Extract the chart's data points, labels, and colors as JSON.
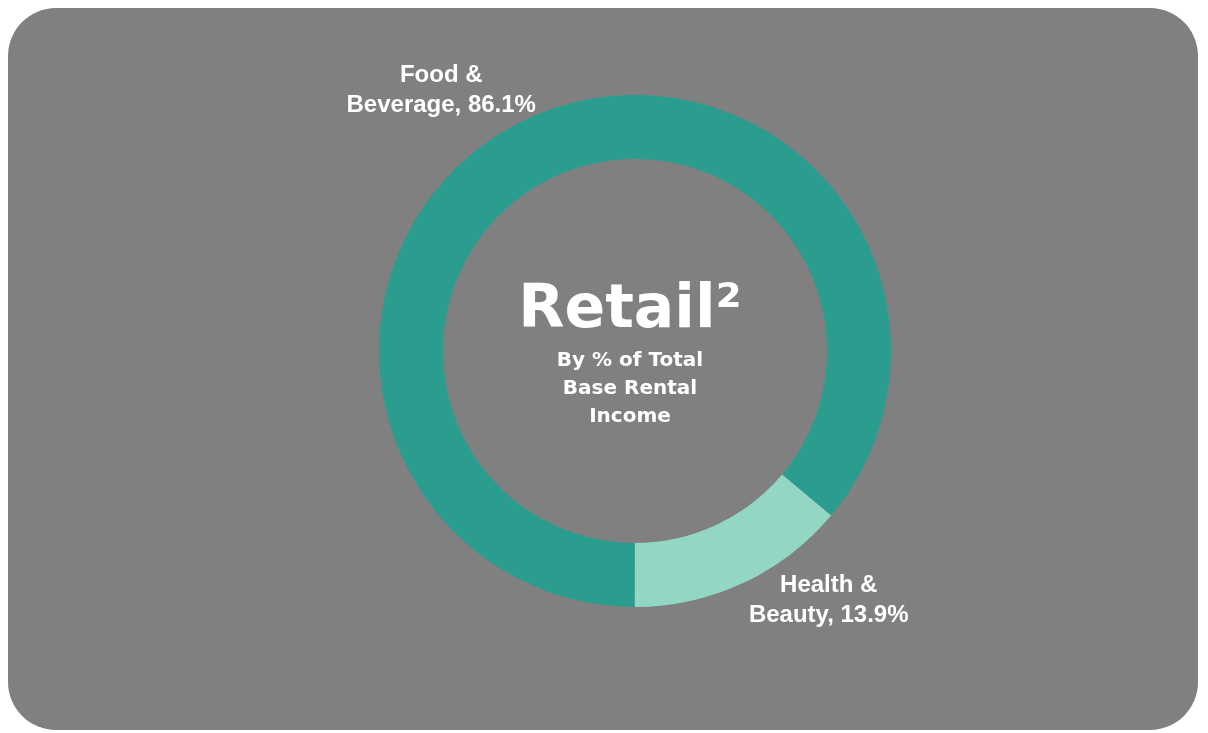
{
  "chart_data": {
    "type": "donut",
    "title": "Retail²",
    "subtitle": "By % of Total Base Rental Income",
    "categories": [
      "Food & Beverage",
      "Health & Beauty"
    ],
    "values": [
      86.1,
      13.9
    ],
    "value_labels": [
      "86.1%",
      "13.9%"
    ],
    "colors": [
      "#2a9d8f",
      "#94d6c4"
    ],
    "legend": false
  }
}
